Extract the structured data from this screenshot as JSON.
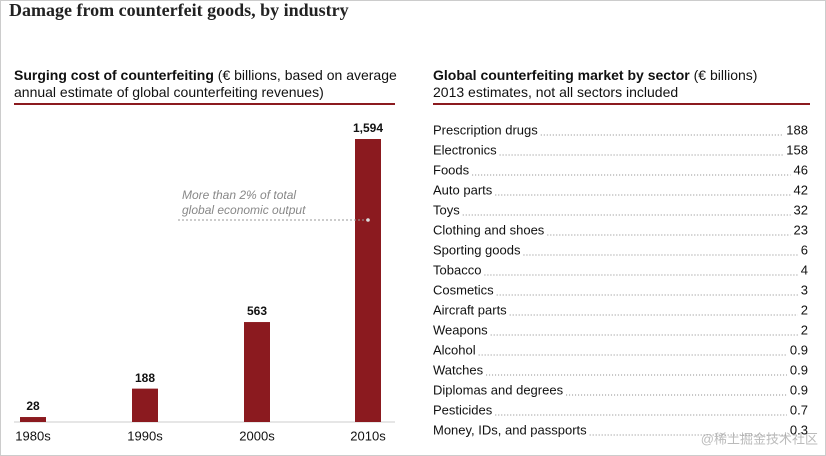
{
  "title": "Damage from counterfeit goods, by industry",
  "watermark": "@稀土掘金技术社区",
  "chart_data": [
    {
      "type": "bar",
      "title": "Surging cost of counterfeiting",
      "subtitle": "(€ billions, based on average annual estimate of global counterfeiting revenues)",
      "categories": [
        "1980s",
        "1990s",
        "2000s",
        "2010s"
      ],
      "values": [
        28,
        188,
        563,
        1594
      ],
      "value_labels": [
        "28",
        "188",
        "563",
        "1,594"
      ],
      "color": "#8b1a1f",
      "annotation": "More than 2% of total global economic output"
    },
    {
      "type": "table",
      "title": "Global counterfeiting market by sector",
      "unit": "(€ billions)",
      "subtitle": "2013 estimates, not all sectors included",
      "categories": [
        "Prescription drugs",
        "Electronics",
        "Foods",
        "Auto parts",
        "Toys",
        "Clothing and shoes",
        "Sporting goods",
        "Tobacco",
        "Cosmetics",
        "Aircraft parts",
        "Weapons",
        "Alcohol",
        "Watches",
        "Diplomas and degrees",
        "Pesticides",
        "Money, IDs, and passports"
      ],
      "values": [
        188,
        158,
        46,
        42,
        32,
        23,
        6,
        4,
        3,
        2,
        2,
        0.9,
        0.9,
        0.9,
        0.7,
        0.3
      ]
    }
  ]
}
